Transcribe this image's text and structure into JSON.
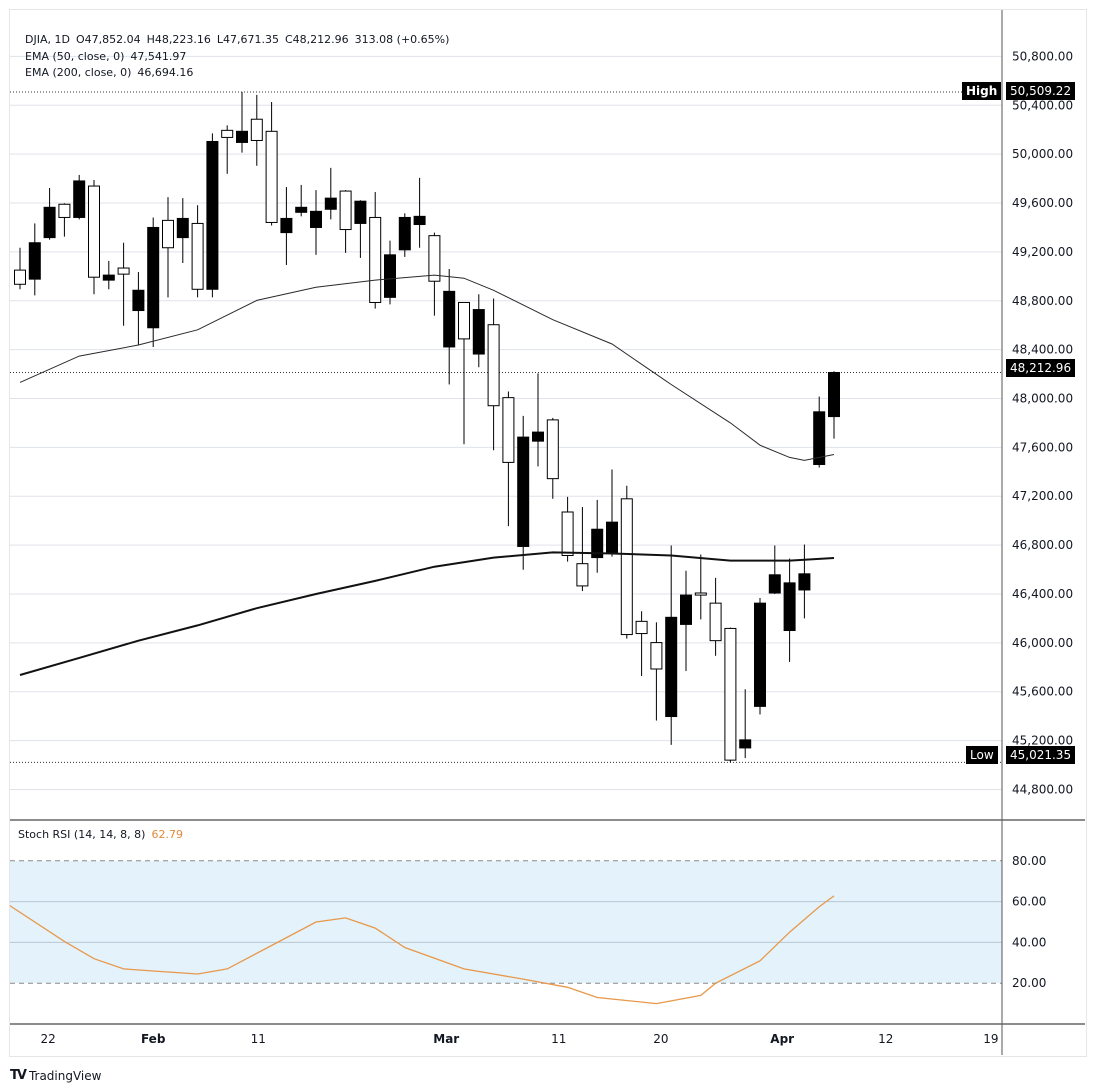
{
  "header": {
    "symbol": "DJIA, 1D",
    "open": "O47,852.04",
    "high": "H48,223.16",
    "low": "L47,671.35",
    "close": "C48,212.96",
    "change": "313.08 (+0.65%)"
  },
  "indicators": {
    "ema50_label": "EMA (50, close, 0)",
    "ema50_value": "47,541.97",
    "ema200_label": "EMA (200, close, 0)",
    "ema200_value": "46,694.16",
    "stoch_label": "Stoch RSI (14, 14, 8, 8)",
    "stoch_value": "62.79"
  },
  "markers": {
    "high_label": "High",
    "high_value": "50,509.22",
    "low_label": "Low",
    "low_value": "45,021.35",
    "last_price": "48,212.96"
  },
  "branding": "TradingView",
  "colors": {
    "up_candle": "#000000",
    "down_candle": "#ffffff",
    "candle_border": "#000000",
    "ema50": "#2a2a2a",
    "ema200": "#111111",
    "stoch_line": "#e8984a",
    "stoch_band": "#e3f2fb",
    "grid": "#e0e3eb"
  },
  "chart_data": [
    {
      "type": "candlestick",
      "note_up_color": "filled black = close above open",
      "ylim": [
        44550,
        51180
      ],
      "y_ticks": [
        "50,800.00",
        "50,400.00",
        "50,000.00",
        "49,600.00",
        "49,200.00",
        "48,800.00",
        "48,400.00",
        "48,000.00",
        "47,600.00",
        "47,200.00",
        "46,800.00",
        "46,400.00",
        "46,000.00",
        "45,600.00",
        "45,200.00",
        "44,800.00"
      ],
      "x_ticks": [
        "22",
        "Feb",
        "11",
        "Mar",
        "11",
        "20",
        "Apr",
        "12",
        "19"
      ],
      "high": 50509.22,
      "low": 45021.35,
      "last": 48212.96,
      "ohlc": [
        [
          49051,
          49234,
          48894,
          48935
        ],
        [
          48977,
          49433,
          48844,
          49275
        ],
        [
          49317,
          49723,
          49300,
          49565
        ],
        [
          49590,
          49598,
          49325,
          49482
        ],
        [
          49482,
          49830,
          49466,
          49781
        ],
        [
          49739,
          49789,
          48853,
          48993
        ],
        [
          48969,
          49126,
          48894,
          49010
        ],
        [
          49068,
          49275,
          48596,
          49018
        ],
        [
          48720,
          49035,
          48438,
          48886
        ],
        [
          48579,
          49482,
          48422,
          49400
        ],
        [
          49458,
          49648,
          48828,
          49234
        ],
        [
          49317,
          49640,
          49109,
          49474
        ],
        [
          49433,
          49582,
          48828,
          48894
        ],
        [
          48894,
          50170,
          48828,
          50104
        ],
        [
          50195,
          50236,
          49839,
          50137
        ],
        [
          50096,
          50509.22,
          50013,
          50187
        ],
        [
          50286,
          50485,
          49905,
          50112
        ],
        [
          50187,
          50427,
          49416,
          49441
        ],
        [
          49358,
          49731,
          49093,
          49474
        ],
        [
          49524,
          49748,
          49491,
          49565
        ],
        [
          49400,
          49706,
          49176,
          49532
        ],
        [
          49549,
          49888,
          49466,
          49640
        ],
        [
          49698,
          49706,
          49192,
          49383
        ],
        [
          49433,
          49623,
          49151,
          49615
        ],
        [
          49482,
          49690,
          48736,
          48786
        ],
        [
          48828,
          49292,
          48770,
          49176
        ],
        [
          49217,
          49516,
          49159,
          49482
        ],
        [
          49424,
          49806,
          49234,
          49491
        ],
        [
          49333,
          49358,
          48678,
          48960
        ],
        [
          48422,
          49060,
          48115,
          48877
        ],
        [
          48786,
          48786,
          47626,
          48488
        ],
        [
          48364,
          48853,
          48256,
          48728
        ],
        [
          48604,
          48819,
          47576,
          47941
        ],
        [
          48007,
          48057,
          46955,
          47477
        ],
        [
          46789,
          47858,
          46598,
          47684
        ],
        [
          47651,
          48206,
          47444,
          47725
        ],
        [
          47825,
          47841,
          47179,
          47344
        ],
        [
          47071,
          47195,
          46665,
          46715
        ],
        [
          46648,
          47112,
          46424,
          46466
        ],
        [
          46698,
          47170,
          46574,
          46930
        ],
        [
          46740,
          47419,
          46706,
          46988
        ],
        [
          47179,
          47286,
          46035,
          46068
        ],
        [
          46176,
          46259,
          45728,
          46076
        ],
        [
          46002,
          46168,
          45364,
          45786
        ],
        [
          45397,
          46797,
          45165,
          46209
        ],
        [
          46151,
          46590,
          45770,
          46391
        ],
        [
          46408,
          46723,
          46192,
          46391
        ],
        [
          46325,
          46532,
          45894,
          46018
        ],
        [
          46118,
          46126,
          45021.35,
          45040
        ],
        [
          45140,
          45620,
          45057,
          45206
        ],
        [
          45480,
          46367,
          45414,
          46325
        ],
        [
          46408,
          46797,
          46400,
          46557
        ],
        [
          46101,
          46690,
          45844,
          46491
        ],
        [
          46433,
          46805,
          46200,
          46565
        ],
        [
          47460,
          48016,
          47435,
          47891
        ],
        [
          47852.04,
          48223.16,
          47671.35,
          48212.96
        ]
      ],
      "ema50": [
        [
          1,
          48132
        ],
        [
          5,
          48347
        ],
        [
          9,
          48438
        ],
        [
          13,
          48562
        ],
        [
          17,
          48803
        ],
        [
          21,
          48910
        ],
        [
          25,
          48969
        ],
        [
          29,
          49010
        ],
        [
          31,
          48985
        ],
        [
          33,
          48886
        ],
        [
          37,
          48645
        ],
        [
          41,
          48446
        ],
        [
          45,
          48115
        ],
        [
          49,
          47800
        ],
        [
          51,
          47618
        ],
        [
          53,
          47518
        ],
        [
          54,
          47493
        ],
        [
          56,
          47541.97
        ]
      ],
      "ema200": [
        [
          1,
          45737
        ],
        [
          5,
          45877
        ],
        [
          9,
          46018
        ],
        [
          13,
          46143
        ],
        [
          17,
          46284
        ],
        [
          21,
          46400
        ],
        [
          25,
          46507
        ],
        [
          29,
          46623
        ],
        [
          33,
          46698
        ],
        [
          37,
          46740
        ],
        [
          41,
          46731
        ],
        [
          45,
          46715
        ],
        [
          49,
          46673
        ],
        [
          53,
          46673
        ],
        [
          56,
          46694.16
        ]
      ]
    },
    {
      "type": "line",
      "ylim": [
        0,
        100
      ],
      "band": [
        20,
        80
      ],
      "y_ticks": [
        "80.00",
        "60.00",
        "40.00",
        "20.00"
      ],
      "values": [
        [
          0,
          59.5
        ],
        [
          4,
          40.5
        ],
        [
          6,
          32
        ],
        [
          8,
          27
        ],
        [
          10,
          26
        ],
        [
          13,
          24.5
        ],
        [
          15,
          27
        ],
        [
          18,
          38.5
        ],
        [
          21,
          50
        ],
        [
          23,
          52
        ],
        [
          25,
          47
        ],
        [
          27,
          37.5
        ],
        [
          31,
          27
        ],
        [
          35,
          22
        ],
        [
          38,
          18
        ],
        [
          40,
          13
        ],
        [
          44,
          10
        ],
        [
          47,
          14
        ],
        [
          48,
          20
        ],
        [
          51,
          31
        ],
        [
          53,
          45
        ],
        [
          55,
          57.5
        ],
        [
          56,
          62.79
        ]
      ]
    }
  ]
}
